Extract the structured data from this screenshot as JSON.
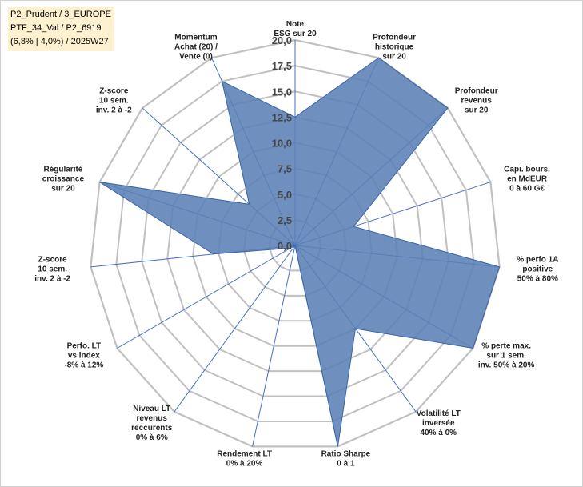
{
  "header_lines": [
    "P2_Prudent / 3_EUROPE",
    "PTF_34_Val / P2_6919",
    "(6,8% | 4,0%) / 2025W27"
  ],
  "colors": {
    "fill": "#5b7fb5",
    "stroke": "#3a66a8",
    "grid": "#c0c0c0",
    "spoke": "#4472c4",
    "header_bg": "#fdf1cf"
  },
  "chart_data": {
    "type": "radar",
    "range": [
      0,
      20
    ],
    "ticks": [
      "0,0",
      "2,5",
      "5,0",
      "7,5",
      "10,0",
      "12,5",
      "15,0",
      "17,5",
      "20,0"
    ],
    "axes": [
      {
        "label": [
          "Note",
          "ESG sur 20"
        ],
        "value": 12.5
      },
      {
        "label": [
          "Profondeur",
          "historique",
          "sur 20"
        ],
        "value": 20
      },
      {
        "label": [
          "Profondeur",
          "revenus",
          "sur 20"
        ],
        "value": 20
      },
      {
        "label": [
          "Capi. bours.",
          "en MdEUR",
          "0 à 60 G€"
        ],
        "value": 6
      },
      {
        "label": [
          "% perfo 1A",
          "positive",
          "50% à 80%"
        ],
        "value": 20
      },
      {
        "label": [
          "% perte max.",
          "sur 1 sem.",
          "inv. 50% à 20%"
        ],
        "value": 20
      },
      {
        "label": [
          "Volatilité LT",
          "inversée",
          "40% à 0%"
        ],
        "value": 10
      },
      {
        "label": [
          "Ratio Sharpe",
          "0 à 1"
        ],
        "value": 20
      },
      {
        "label": [
          "Rendement LT",
          "0% à 20%"
        ],
        "value": 0
      },
      {
        "label": [
          "Niveau LT",
          "revenus",
          "reccurents",
          "0% à 6%"
        ],
        "value": 0
      },
      {
        "label": [
          "Perfo. LT",
          "vs index",
          "-8% à 12%"
        ],
        "value": 0.5
      },
      {
        "label": [
          "Z-score",
          "10 sem.",
          "inv. 2 à -2"
        ],
        "value": 8
      },
      {
        "label": [
          "Régularité",
          "croissance",
          "sur 20"
        ],
        "value": 20
      },
      {
        "label": [
          "Z-score",
          "10 sem.",
          "inv. 2 à -2"
        ],
        "value": 6
      },
      {
        "label": [
          "Momentum",
          "Achat (20) /",
          "Vente (0)"
        ],
        "value": 17.5
      }
    ]
  }
}
